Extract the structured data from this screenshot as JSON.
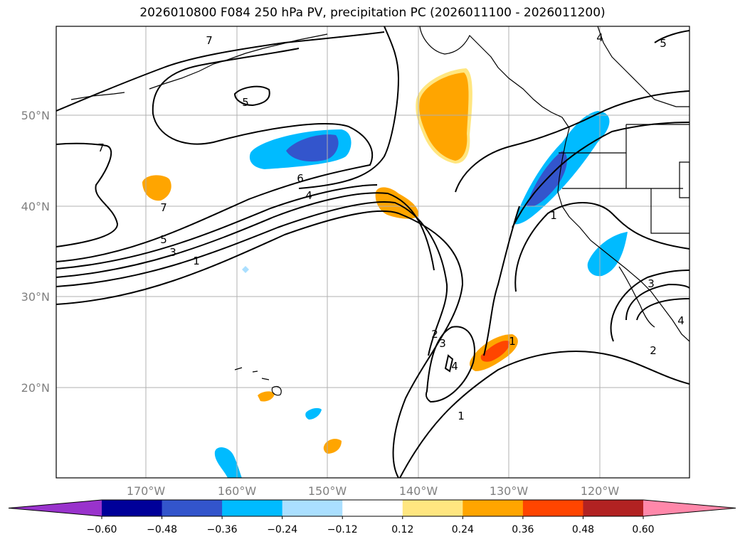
{
  "title": "2026010800 F084 250 hPa PV, precipitation PC (2026011100 - 2026011200)",
  "lat_labels": [
    "50°N",
    "40°N",
    "30°N",
    "20°N"
  ],
  "lon_labels": [
    "170°W",
    "160°W",
    "150°W",
    "140°W",
    "130°W",
    "120°W"
  ],
  "contour_labels": [
    "7",
    "5",
    "7",
    "6",
    "4",
    "5",
    "3",
    "1",
    "7",
    "1",
    "2",
    "3",
    "4",
    "1",
    "4",
    "5",
    "3",
    "4",
    "2",
    "1"
  ],
  "colorbar": {
    "ticks": [
      "−0.60",
      "−0.48",
      "−0.36",
      "−0.24",
      "−0.12",
      "0.12",
      "0.24",
      "0.36",
      "0.48",
      "0.60"
    ],
    "colors": [
      "#9933cc",
      "#000099",
      "#3355cc",
      "#00bbff",
      "#aadfff",
      "#ffffff",
      "#ffe680",
      "#ffa500",
      "#ff4500",
      "#b22222",
      "#ff88aa"
    ]
  }
}
